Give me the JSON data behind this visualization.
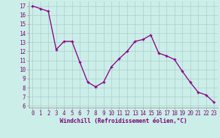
{
  "x": [
    0,
    1,
    2,
    3,
    4,
    5,
    6,
    7,
    8,
    9,
    10,
    11,
    12,
    13,
    14,
    15,
    16,
    17,
    18,
    19,
    20,
    21,
    22,
    23
  ],
  "y": [
    17.0,
    16.7,
    16.4,
    12.2,
    13.1,
    13.1,
    10.8,
    8.6,
    8.1,
    8.6,
    10.3,
    11.2,
    12.0,
    13.1,
    13.3,
    13.8,
    11.8,
    11.5,
    11.1,
    9.8,
    8.6,
    7.5,
    7.2,
    6.4
  ],
  "line_color": "#880088",
  "marker": "P",
  "marker_size": 3,
  "marker_linewidth": 1.0,
  "line_width": 1.0,
  "bg_color": "#cceee8",
  "grid_color": "#aacccc",
  "xlabel": "Windchill (Refroidissement éolien,°C)",
  "xlim": [
    -0.5,
    23.5
  ],
  "ylim": [
    5.8,
    17.5
  ],
  "yticks": [
    6,
    7,
    8,
    9,
    10,
    11,
    12,
    13,
    14,
    15,
    16,
    17
  ],
  "xticks": [
    0,
    1,
    2,
    3,
    4,
    5,
    6,
    7,
    8,
    9,
    10,
    11,
    12,
    13,
    14,
    15,
    16,
    17,
    18,
    19,
    20,
    21,
    22,
    23
  ],
  "tick_fontsize": 5.5,
  "xlabel_fontsize": 6.0,
  "tick_color": "#770077",
  "spine_color": "#999999"
}
